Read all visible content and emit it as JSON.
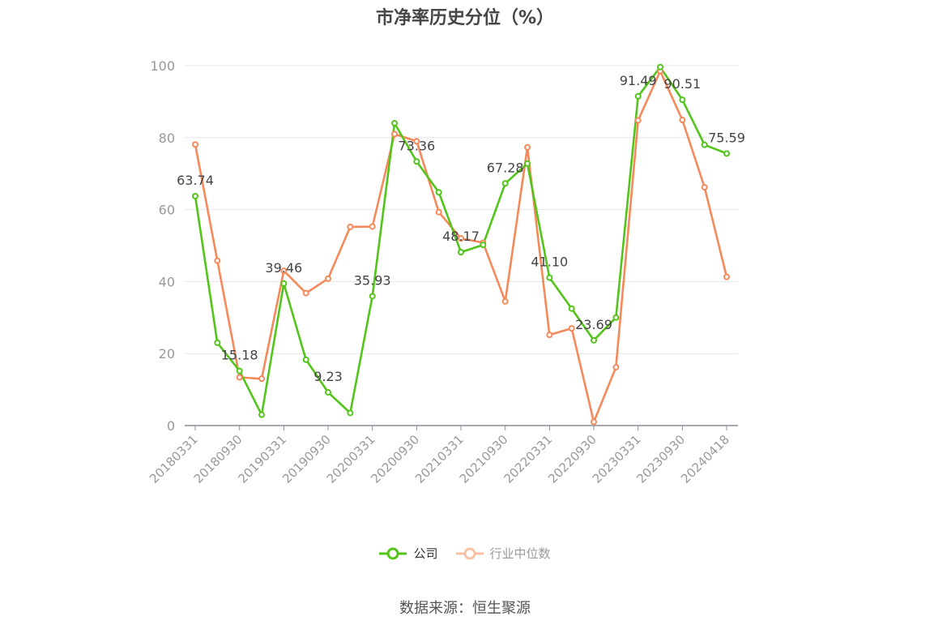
{
  "chart_data": {
    "type": "line",
    "title": "市净率历史分位（%）",
    "ylim": [
      0,
      100
    ],
    "yticks": [
      0,
      20,
      40,
      60,
      80,
      100
    ],
    "x_tick_labels": [
      "20180331",
      "20180930",
      "20190331",
      "20190930",
      "20200331",
      "20200930",
      "20210331",
      "20210930",
      "20220331",
      "20220930",
      "20230331",
      "20230930",
      "20240418"
    ],
    "x": [
      "20180331",
      "20180630",
      "20180930",
      "20181231",
      "20190331",
      "20190630",
      "20190930",
      "20191231",
      "20200331",
      "20200630",
      "20200930",
      "20201231",
      "20210331",
      "20210630",
      "20210930",
      "20211231",
      "20220331",
      "20220630",
      "20220930",
      "20221231",
      "20230331",
      "20230630",
      "20230930",
      "20231231",
      "20240418"
    ],
    "series": [
      {
        "name": "公司",
        "color": "#52c41a",
        "values": [
          63.74,
          23,
          15.18,
          3,
          39.46,
          18.3,
          9.23,
          3.5,
          35.93,
          84,
          73.36,
          64.8,
          48.17,
          50.2,
          67.28,
          72.8,
          41.1,
          32.5,
          23.69,
          30,
          91.49,
          99.6,
          90.51,
          78,
          75.59
        ],
        "labeled_points": [
          {
            "index": 0,
            "text": "63.74"
          },
          {
            "index": 2,
            "text": "15.18"
          },
          {
            "index": 4,
            "text": "39.46"
          },
          {
            "index": 6,
            "text": "9.23"
          },
          {
            "index": 8,
            "text": "35.93"
          },
          {
            "index": 10,
            "text": "73.36"
          },
          {
            "index": 12,
            "text": "48.17"
          },
          {
            "index": 14,
            "text": "67.28"
          },
          {
            "index": 16,
            "text": "41.10"
          },
          {
            "index": 18,
            "text": "23.69"
          },
          {
            "index": 20,
            "text": "91.49"
          },
          {
            "index": 22,
            "text": "90.51"
          },
          {
            "index": 24,
            "text": "75.59"
          }
        ]
      },
      {
        "name": "行业中位数",
        "color": "#f5895a",
        "values": [
          78.1,
          45.8,
          13.4,
          13,
          43,
          36.8,
          40.8,
          55.2,
          55.3,
          81,
          79,
          59.3,
          52,
          50.8,
          34.5,
          77.3,
          25.2,
          27,
          1,
          16.2,
          84.8,
          98.5,
          84.9,
          66.2,
          41.3
        ]
      }
    ],
    "grid": true,
    "legend_position": "bottom-center"
  },
  "source_label": "数据来源：恒生聚源"
}
